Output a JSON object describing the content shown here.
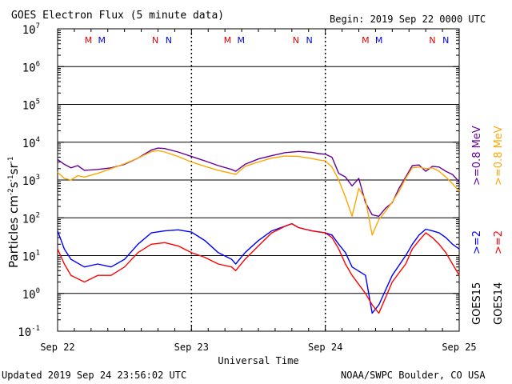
{
  "header": {
    "title": "GOES Electron Flux (5 minute data)",
    "begin": "Begin: 2019 Sep 22 0000 UTC"
  },
  "footer": {
    "updated": "Updated 2019 Sep 24 23:56:02 UTC",
    "credit": "NOAA/SWPC Boulder, CO USA"
  },
  "colors": {
    "goes15_low": "#0000ff",
    "goes14_low": "#ff0000",
    "goes15_high": "#660099",
    "goes14_high": "#ffa500",
    "marker_m": "#dd0000",
    "marker_n": "#0000dd"
  },
  "legend": {
    "goes15_label": "GOES15",
    "goes14_label": "GOES14",
    "e08_goes15": ">=0.8 MeV",
    "e08_goes14": ">=0.8 MeV",
    "e2_goes15": ">=2",
    "e2_goes14": ">=2"
  },
  "markers": [
    {
      "letter": "M",
      "day": 0.23,
      "color": "marker_m"
    },
    {
      "letter": "M",
      "day": 0.33,
      "color": "marker_n"
    },
    {
      "letter": "N",
      "day": 0.73,
      "color": "marker_m"
    },
    {
      "letter": "N",
      "day": 0.83,
      "color": "marker_n"
    },
    {
      "letter": "M",
      "day": 1.27,
      "color": "marker_m"
    },
    {
      "letter": "M",
      "day": 1.37,
      "color": "marker_n"
    },
    {
      "letter": "N",
      "day": 1.78,
      "color": "marker_m"
    },
    {
      "letter": "N",
      "day": 1.88,
      "color": "marker_n"
    },
    {
      "letter": "M",
      "day": 2.3,
      "color": "marker_m"
    },
    {
      "letter": "M",
      "day": 2.4,
      "color": "marker_n"
    },
    {
      "letter": "N",
      "day": 2.8,
      "color": "marker_m"
    },
    {
      "letter": "N",
      "day": 2.9,
      "color": "marker_n"
    }
  ],
  "chart_data": {
    "type": "line",
    "ylabel": "Particles cm",
    "xlabel": "Universal Time",
    "x_unit": "days since 2019 Sep 22 0000 UTC",
    "y_scale": "log",
    "ylim": [
      0.1,
      10000000
    ],
    "xlim": [
      0,
      3
    ],
    "x_ticks": [
      "Sep 22",
      "Sep 23",
      "Sep 24",
      "Sep 25"
    ],
    "y_ticks": [
      {
        "base": "10",
        "exp": "-1"
      },
      {
        "base": "10",
        "exp": "0"
      },
      {
        "base": "10",
        "exp": "1"
      },
      {
        "base": "10",
        "exp": "2"
      },
      {
        "base": "10",
        "exp": "3"
      },
      {
        "base": "10",
        "exp": "4"
      },
      {
        "base": "10",
        "exp": "5"
      },
      {
        "base": "10",
        "exp": "6"
      },
      {
        "base": "10",
        "exp": "7"
      }
    ],
    "threshold_line": 1000,
    "grid": "horizontal decades, dashed vertical day lines",
    "series": [
      {
        "name": "GOES15 >=0.8 MeV",
        "color": "#660099",
        "x": [
          0,
          0.05,
          0.1,
          0.15,
          0.2,
          0.3,
          0.4,
          0.5,
          0.6,
          0.7,
          0.75,
          0.8,
          0.9,
          1.0,
          1.1,
          1.2,
          1.3,
          1.33,
          1.4,
          1.5,
          1.6,
          1.7,
          1.8,
          1.9,
          1.95,
          2.0,
          2.05,
          2.1,
          2.15,
          2.2,
          2.25,
          2.3,
          2.35,
          2.4,
          2.45,
          2.5,
          2.55,
          2.6,
          2.65,
          2.7,
          2.75,
          2.8,
          2.85,
          2.9,
          2.95,
          3.0
        ],
        "values": [
          3500,
          2600,
          2100,
          2400,
          1800,
          1900,
          2100,
          2600,
          3800,
          6200,
          7000,
          6800,
          5500,
          4200,
          3200,
          2400,
          1900,
          1700,
          2600,
          3600,
          4400,
          5300,
          5700,
          5400,
          5000,
          4800,
          4000,
          1500,
          1200,
          700,
          1100,
          250,
          120,
          110,
          180,
          250,
          600,
          1200,
          2400,
          2500,
          1700,
          2300,
          2200,
          1700,
          1400,
          900
        ]
      },
      {
        "name": "GOES14 >=0.8 MeV",
        "color": "#ffa500",
        "x": [
          0,
          0.05,
          0.1,
          0.15,
          0.2,
          0.3,
          0.4,
          0.5,
          0.6,
          0.7,
          0.75,
          0.8,
          0.9,
          1.0,
          1.1,
          1.2,
          1.3,
          1.33,
          1.4,
          1.5,
          1.6,
          1.7,
          1.8,
          1.9,
          1.95,
          2.0,
          2.05,
          2.1,
          2.15,
          2.2,
          2.25,
          2.3,
          2.35,
          2.4,
          2.45,
          2.5,
          2.55,
          2.6,
          2.65,
          2.7,
          2.75,
          2.8,
          2.85,
          2.9,
          2.95,
          3.0
        ],
        "values": [
          1600,
          1100,
          1000,
          1300,
          1200,
          1500,
          2000,
          2700,
          3800,
          5600,
          6000,
          5500,
          4200,
          3000,
          2300,
          1800,
          1500,
          1400,
          2300,
          3000,
          3800,
          4300,
          4200,
          3700,
          3400,
          3200,
          2200,
          1000,
          350,
          110,
          600,
          300,
          35,
          90,
          150,
          260,
          500,
          1100,
          2100,
          2200,
          2000,
          2100,
          1700,
          1200,
          800,
          500
        ]
      },
      {
        "name": "GOES15 >=2 MeV",
        "color": "#0000ff",
        "x": [
          0,
          0.05,
          0.1,
          0.2,
          0.3,
          0.4,
          0.5,
          0.6,
          0.7,
          0.8,
          0.9,
          1.0,
          1.1,
          1.2,
          1.3,
          1.33,
          1.4,
          1.5,
          1.6,
          1.7,
          1.75,
          1.8,
          1.9,
          2.0,
          2.05,
          2.1,
          2.15,
          2.2,
          2.3,
          2.35,
          2.4,
          2.5,
          2.6,
          2.65,
          2.7,
          2.75,
          2.8,
          2.85,
          2.9,
          2.95,
          3.0
        ],
        "values": [
          45,
          15,
          8,
          5,
          6,
          5,
          8,
          20,
          40,
          45,
          48,
          42,
          25,
          12,
          8,
          6,
          12,
          25,
          45,
          60,
          70,
          55,
          45,
          40,
          35,
          20,
          12,
          5,
          3,
          0.3,
          0.5,
          3,
          10,
          20,
          35,
          50,
          45,
          40,
          30,
          20,
          15
        ]
      },
      {
        "name": "GOES14 >=2 MeV",
        "color": "#ff0000",
        "x": [
          0,
          0.05,
          0.1,
          0.2,
          0.3,
          0.4,
          0.5,
          0.6,
          0.7,
          0.8,
          0.9,
          1.0,
          1.1,
          1.2,
          1.3,
          1.33,
          1.4,
          1.5,
          1.6,
          1.7,
          1.75,
          1.8,
          1.9,
          2.0,
          2.05,
          2.1,
          2.15,
          2.2,
          2.3,
          2.35,
          2.4,
          2.5,
          2.6,
          2.65,
          2.7,
          2.75,
          2.8,
          2.85,
          2.9,
          2.95,
          3.0
        ],
        "values": [
          15,
          6,
          3,
          2,
          3,
          3,
          5,
          12,
          20,
          22,
          18,
          12,
          9,
          6,
          5,
          4,
          8,
          18,
          40,
          60,
          70,
          55,
          45,
          40,
          30,
          15,
          6,
          3,
          1,
          0.5,
          0.3,
          2,
          6,
          15,
          25,
          40,
          30,
          20,
          12,
          6,
          3
        ]
      }
    ]
  }
}
